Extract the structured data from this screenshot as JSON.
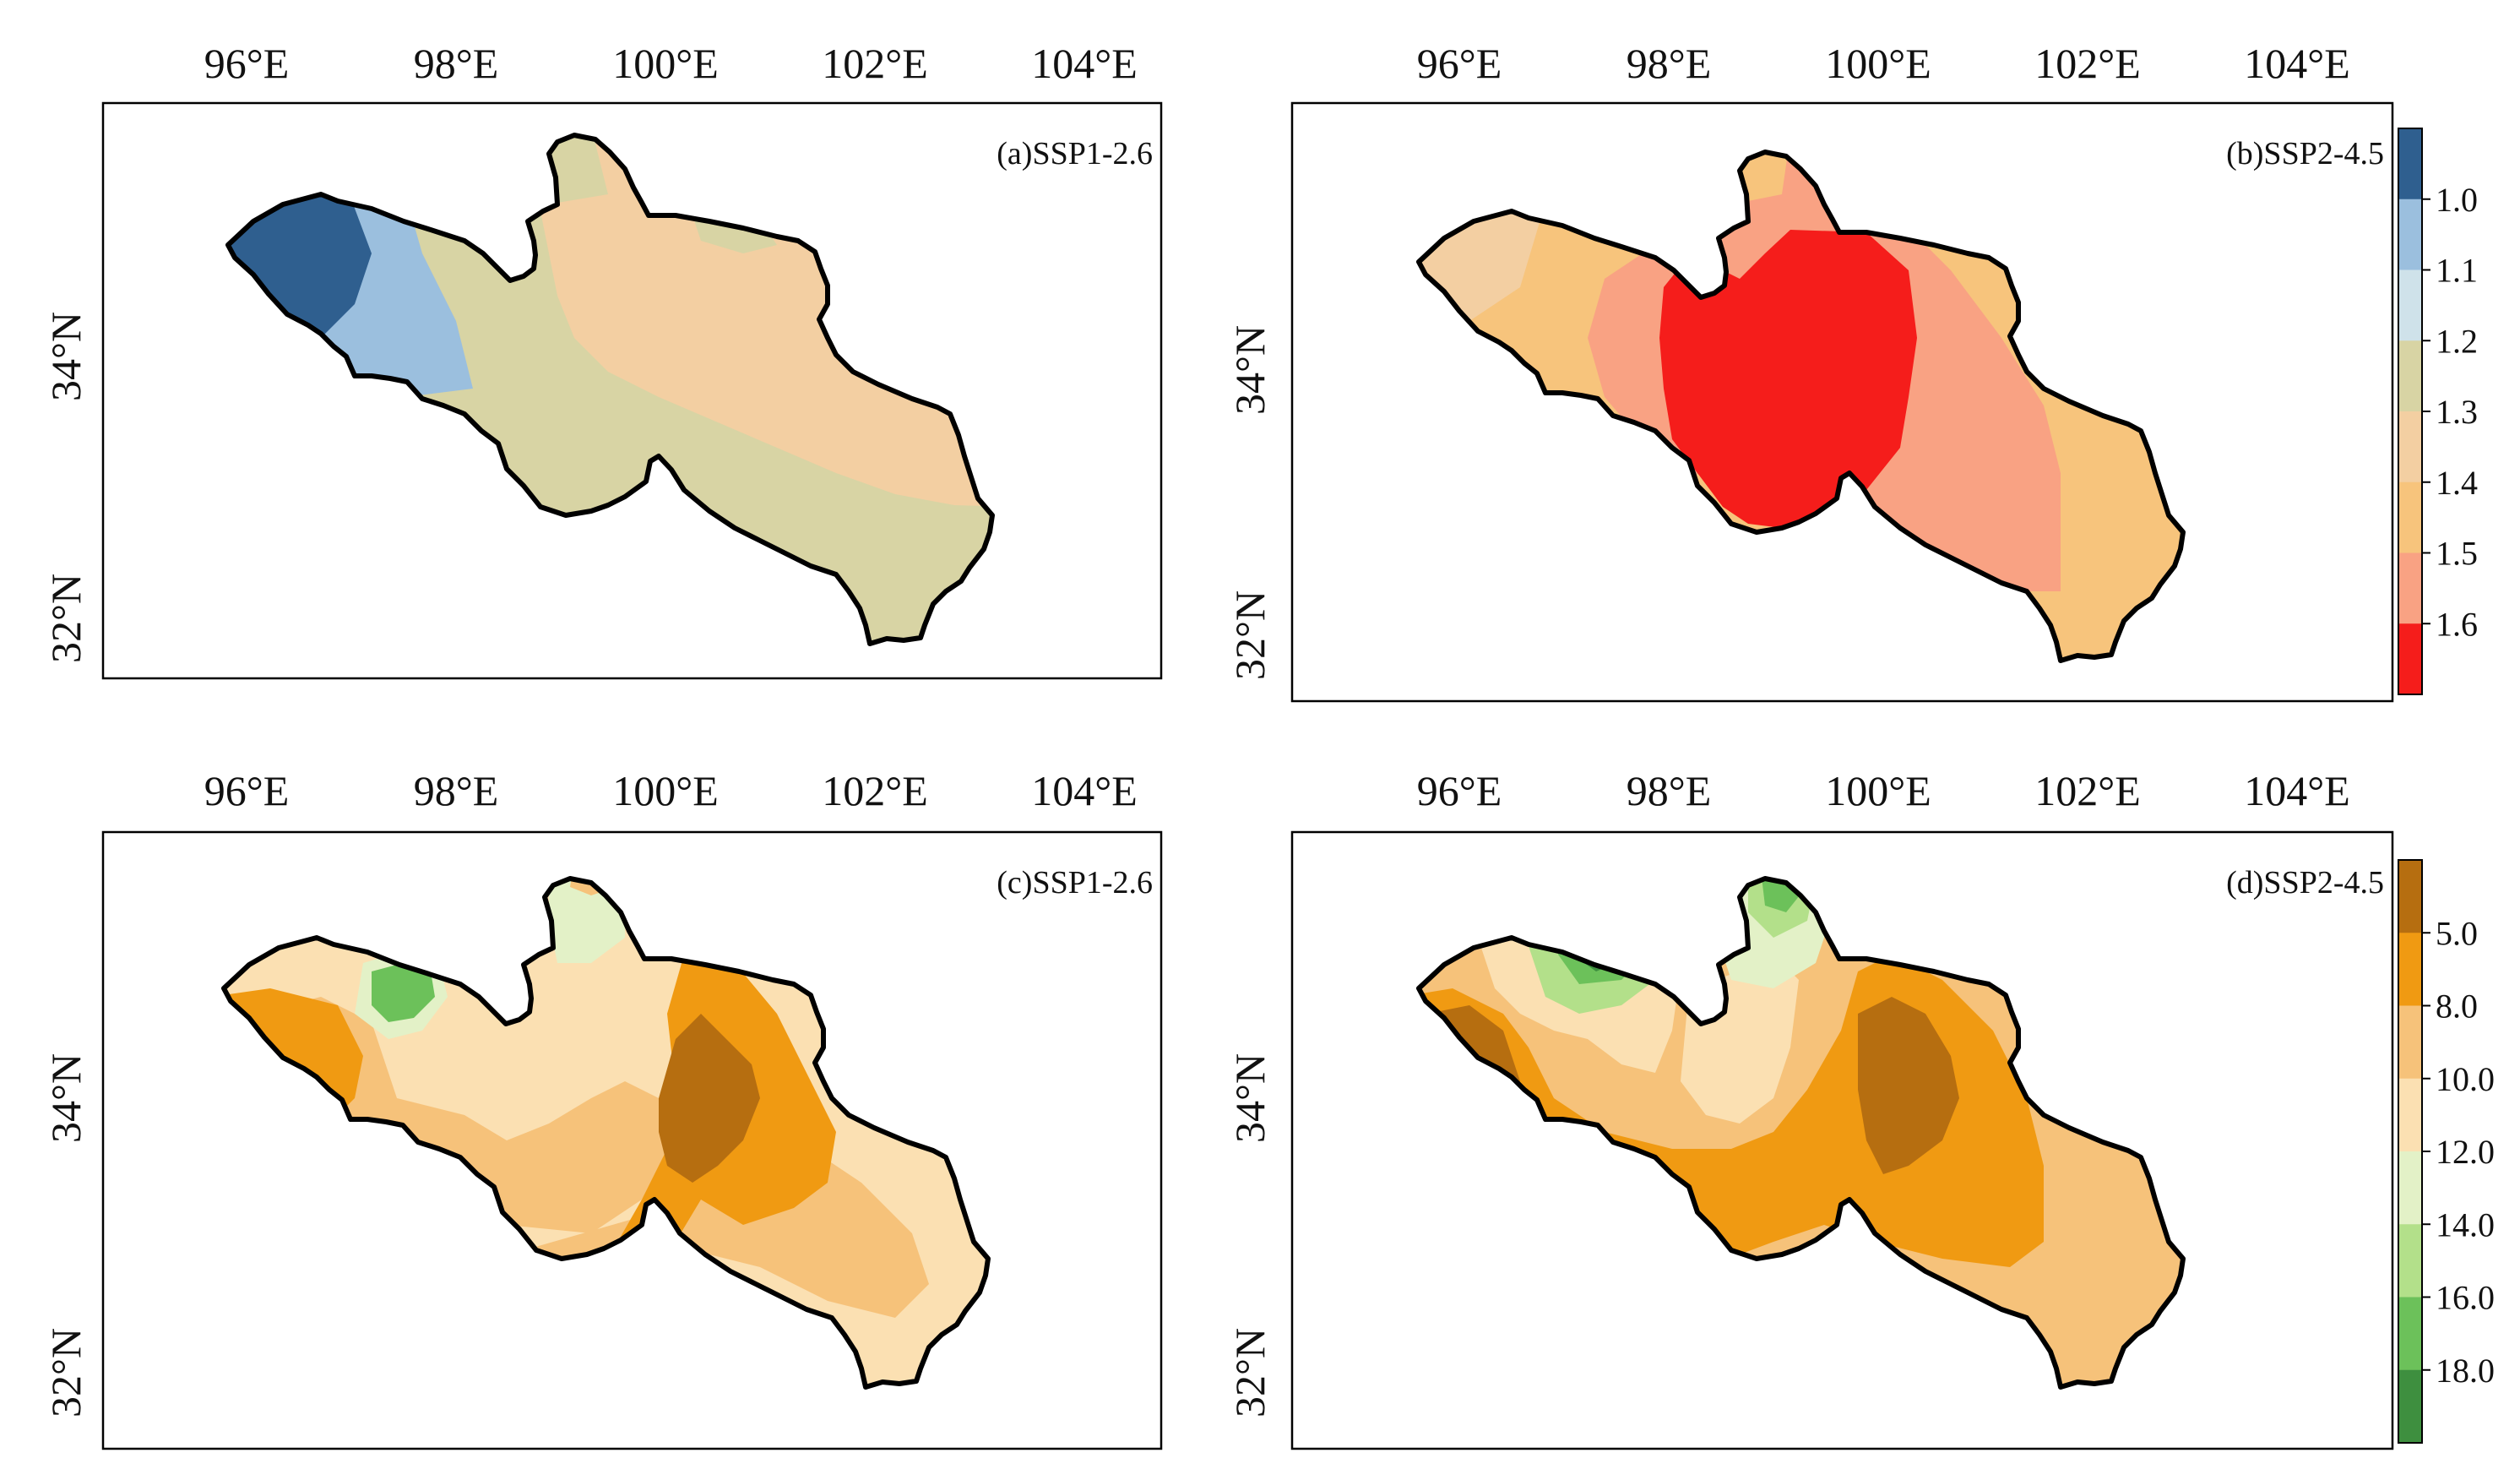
{
  "lon_labels": [
    "96°E",
    "98°E",
    "100°E",
    "102°E",
    "104°E"
  ],
  "lat_labels": [
    "34°N",
    "32°N"
  ],
  "panels": [
    {
      "id": "a",
      "title": "(a)SSP1-2.6"
    },
    {
      "id": "b",
      "title": "(b)SSP2-4.5"
    },
    {
      "id": "c",
      "title": "(c)SSP1-2.6"
    },
    {
      "id": "d",
      "title": "(d)SSP2-4.5"
    }
  ],
  "colorbar_top": {
    "labels": [
      "1.0",
      "1.1",
      "1.2",
      "1.3",
      "1.4",
      "1.5",
      "1.6"
    ],
    "colors": [
      "#2f5f8f",
      "#9bbfde",
      "#cfe2ea",
      "#d8d4a4",
      "#f3cfa2",
      "#f7c47c",
      "#f9a283",
      "#f51d1b"
    ]
  },
  "colorbar_bottom": {
    "labels": [
      "5.0",
      "8.0",
      "10.0",
      "12.0",
      "14.0",
      "16.0",
      "18.0"
    ],
    "colors": [
      "#b66e10",
      "#f09a12",
      "#f6c27a",
      "#fbe0b2",
      "#e3f1c7",
      "#b3e08a",
      "#6cc15a",
      "#3e8f3f"
    ]
  }
}
